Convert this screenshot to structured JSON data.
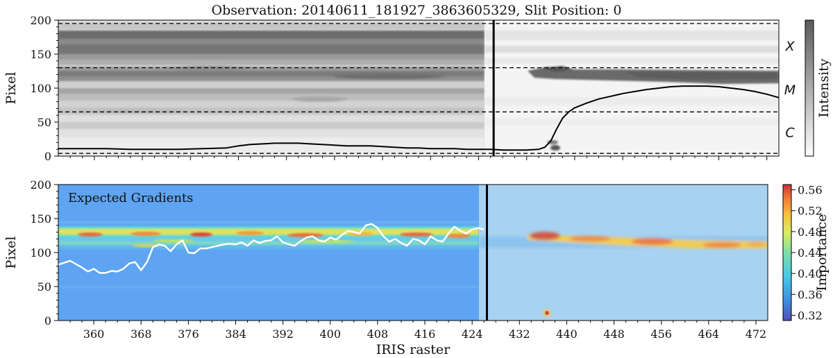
{
  "figure_title": "Observation: 20140611_181927_3863605329, Slit Position: 0",
  "chart_data": [
    {
      "type": "heatmap",
      "panel": "top",
      "title": "Observation: 20140611_181927_3863605329, Slit Position: 0",
      "ylabel": "Pixel",
      "ylim": [
        0,
        200
      ],
      "yticks": [
        "0",
        "50",
        "100",
        "150",
        "200"
      ],
      "grid": false,
      "colorbar": {
        "label": "Intensity",
        "cmap": [
          "#ffffff",
          "#5a5a5a"
        ]
      },
      "zone_boundaries": [
        4,
        65,
        130,
        195
      ],
      "zone_labels": [
        {
          "text": "X",
          "y": 162
        },
        {
          "text": "M",
          "y": 98
        },
        {
          "text": "C",
          "y": 35
        }
      ],
      "separator_x": 426.5,
      "series": [
        {
          "color": "#000000",
          "x": [
            354,
            358,
            362,
            366,
            370,
            374,
            378,
            382,
            384,
            386,
            388,
            390,
            392,
            394,
            396,
            398,
            400,
            402,
            404,
            406,
            408,
            410,
            412,
            414,
            416,
            418,
            420,
            422,
            424,
            426,
            428,
            430,
            432,
            434,
            435,
            436,
            437,
            438,
            439,
            440,
            442,
            444,
            446,
            448,
            450,
            452,
            454,
            456,
            458,
            460,
            462,
            464,
            466,
            468,
            470,
            472,
            474
          ],
          "y": [
            11,
            11,
            11,
            10,
            10,
            10,
            11,
            12,
            15,
            17,
            18,
            19,
            19,
            19,
            18,
            17,
            16,
            15,
            15,
            15,
            14,
            13,
            12,
            12,
            11,
            11,
            11,
            10,
            10,
            10,
            9,
            9,
            9,
            10,
            13,
            22,
            40,
            56,
            65,
            71,
            78,
            84,
            88,
            92,
            95,
            98,
            100,
            102,
            103,
            103,
            103,
            102,
            100,
            98,
            95,
            91,
            86
          ]
        }
      ]
    },
    {
      "type": "heatmap",
      "panel": "bottom",
      "annotation": "Expected Gradients",
      "xlabel": "IRIS raster",
      "ylabel": "Pixel",
      "xlim": [
        354,
        474
      ],
      "ylim": [
        0,
        200
      ],
      "xticks": [
        "360",
        "368",
        "376",
        "384",
        "392",
        "400",
        "408",
        "416",
        "424",
        "432",
        "440",
        "448",
        "456",
        "464",
        "472"
      ],
      "yticks": [
        "0",
        "50",
        "100",
        "150",
        "200"
      ],
      "grid": false,
      "colorbar": {
        "label": "Importance",
        "range": [
          0.31,
          0.57
        ],
        "ticks": [
          "0.32",
          "0.36",
          "0.40",
          "0.44",
          "0.48",
          "0.52",
          "0.56"
        ],
        "cmap": [
          "#5050b8",
          "#3f8fe0",
          "#45c8e8",
          "#7ee0a8",
          "#dcec60",
          "#f6c23c",
          "#f07a38",
          "#c8323a"
        ]
      },
      "separator_x": 426.5,
      "series": [
        {
          "color": "#ffffff",
          "x": [
            354,
            356,
            358,
            359,
            360,
            361,
            362,
            363,
            364,
            365,
            366,
            367,
            368,
            369,
            370,
            371,
            372,
            373,
            374,
            375,
            376,
            377,
            378,
            379,
            380,
            381,
            382,
            383,
            384,
            385,
            386,
            387,
            388,
            389,
            390,
            391,
            392,
            393,
            394,
            395,
            396,
            397,
            398,
            399,
            400,
            401,
            402,
            403,
            404,
            405,
            406,
            407,
            408,
            409,
            410,
            411,
            412,
            413,
            414,
            415,
            416,
            417,
            418,
            419,
            420,
            421,
            422,
            423,
            424,
            425,
            426
          ],
          "y": [
            82,
            88,
            78,
            72,
            76,
            70,
            70,
            73,
            72,
            76,
            84,
            86,
            74,
            86,
            108,
            112,
            110,
            102,
            112,
            118,
            100,
            99,
            106,
            106,
            108,
            110,
            112,
            113,
            112,
            115,
            110,
            118,
            114,
            117,
            118,
            124,
            115,
            112,
            110,
            117,
            122,
            124,
            118,
            116,
            122,
            119,
            126,
            132,
            130,
            128,
            140,
            142,
            136,
            124,
            116,
            120,
            114,
            110,
            120,
            118,
            112,
            124,
            118,
            116,
            128,
            138,
            132,
            128,
            134,
            136,
            134
          ]
        }
      ],
      "hotspots": [
        {
          "x": 436,
          "y": 124,
          "value": 0.56
        },
        {
          "x": 454,
          "y": 115,
          "value": 0.54
        },
        {
          "x": 438,
          "y": 15,
          "value": 0.56
        }
      ]
    }
  ]
}
